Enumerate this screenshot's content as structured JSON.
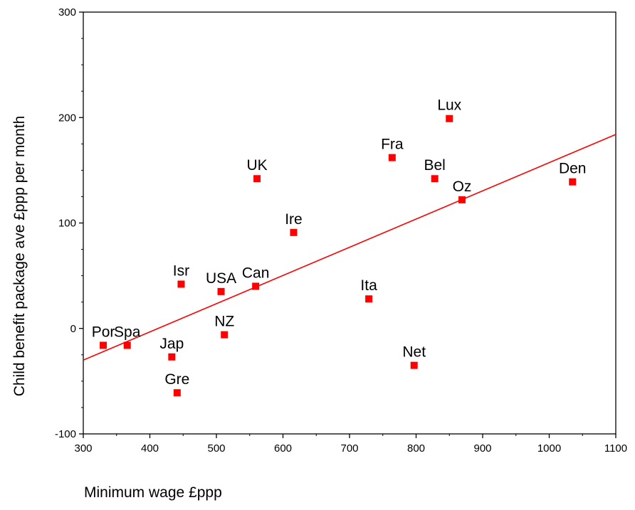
{
  "chart_data": {
    "type": "scatter",
    "xlabel": "Minimum wage £ppp",
    "ylabel": "Child benefit package ave £ppp per month",
    "xlim": [
      300,
      1100
    ],
    "ylim": [
      -100,
      300
    ],
    "x_ticks": [
      300,
      400,
      500,
      600,
      700,
      800,
      900,
      1000,
      1100
    ],
    "y_ticks": [
      -100,
      0,
      100,
      200,
      300
    ],
    "marker_color": "#ff0000",
    "line_color": "#ff0000",
    "grid": false,
    "points": [
      {
        "label": "Por",
        "x": 330,
        "y": -16
      },
      {
        "label": "Spa",
        "x": 366,
        "y": -16
      },
      {
        "label": "Jap",
        "x": 433,
        "y": -27
      },
      {
        "label": "Gre",
        "x": 441,
        "y": -61
      },
      {
        "label": "Isr",
        "x": 447,
        "y": 42
      },
      {
        "label": "USA",
        "x": 507,
        "y": 35
      },
      {
        "label": "NZ",
        "x": 512,
        "y": -6
      },
      {
        "label": "Can",
        "x": 559,
        "y": 40
      },
      {
        "label": "UK",
        "x": 561,
        "y": 142
      },
      {
        "label": "Ire",
        "x": 616,
        "y": 91
      },
      {
        "label": "Ita",
        "x": 729,
        "y": 28
      },
      {
        "label": "Fra",
        "x": 764,
        "y": 162
      },
      {
        "label": "Net",
        "x": 797,
        "y": -35
      },
      {
        "label": "Bel",
        "x": 828,
        "y": 142
      },
      {
        "label": "Lux",
        "x": 850,
        "y": 199
      },
      {
        "label": "Oz",
        "x": 869,
        "y": 122
      },
      {
        "label": "Den",
        "x": 1035,
        "y": 139
      }
    ],
    "fit_line": {
      "x": [
        300,
        1100
      ],
      "y": [
        -30,
        184
      ]
    }
  }
}
